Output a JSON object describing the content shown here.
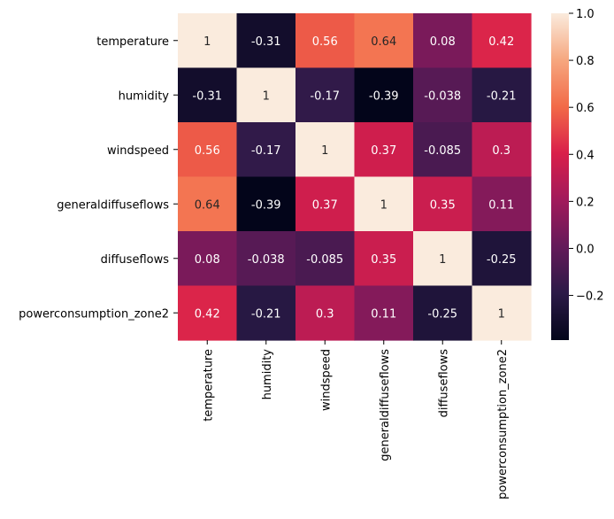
{
  "chart_data": {
    "type": "heatmap",
    "title": "",
    "xlabel": "",
    "ylabel": "",
    "x_labels": [
      "temperature",
      "humidity",
      "windspeed",
      "generaldiffuseflows",
      "diffuseflows",
      "powerconsumption_zone2"
    ],
    "y_labels": [
      "temperature",
      "humidity",
      "windspeed",
      "generaldiffuseflows",
      "diffuseflows",
      "powerconsumption_zone2"
    ],
    "values": [
      [
        1,
        -0.31,
        0.56,
        0.64,
        0.08,
        0.42
      ],
      [
        -0.31,
        1,
        -0.17,
        -0.39,
        -0.038,
        -0.21
      ],
      [
        0.56,
        -0.17,
        1,
        0.37,
        -0.085,
        0.3
      ],
      [
        0.64,
        -0.39,
        0.37,
        1,
        0.35,
        0.11
      ],
      [
        0.08,
        -0.038,
        -0.085,
        0.35,
        1,
        -0.25
      ],
      [
        0.42,
        -0.21,
        0.3,
        0.11,
        -0.25,
        1
      ]
    ],
    "cell_labels": [
      [
        "1",
        "-0.31",
        "0.56",
        "0.64",
        "0.08",
        "0.42"
      ],
      [
        "-0.31",
        "1",
        "-0.17",
        "-0.39",
        "-0.038",
        "-0.21"
      ],
      [
        "0.56",
        "-0.17",
        "1",
        "0.37",
        "-0.085",
        "0.3"
      ],
      [
        "0.64",
        "-0.39",
        "0.37",
        "1",
        "0.35",
        "0.11"
      ],
      [
        "0.08",
        "-0.038",
        "-0.085",
        "0.35",
        "1",
        "-0.25"
      ],
      [
        "0.42",
        "-0.21",
        "0.3",
        "0.11",
        "-0.25",
        "1"
      ]
    ],
    "colorbar": {
      "vmin": -0.39,
      "vmax": 1.0,
      "ticks": [
        -0.2,
        0.0,
        0.2,
        0.4,
        0.6,
        0.8,
        1.0
      ],
      "tick_labels": [
        "−0.2",
        "0.0",
        "0.2",
        "0.4",
        "0.6",
        "0.8",
        "1.0"
      ]
    },
    "colormap": [
      "#03051a",
      "#2b1a47",
      "#641a59",
      "#a11a5b",
      "#d91f4a",
      "#f26a48",
      "#f6a77f",
      "#faebdd"
    ]
  }
}
